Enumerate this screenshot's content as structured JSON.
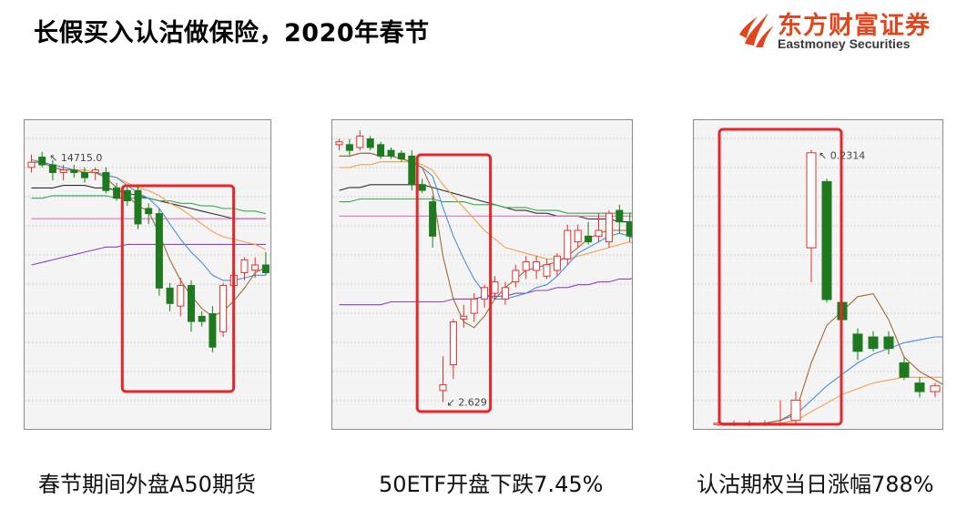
{
  "title": "长假买入认沽做保险，2020年春节",
  "logo": {
    "cn": "东方财富证券",
    "en": "Eastmoney Securities",
    "mark": "flame-logo-icon"
  },
  "colors": {
    "up": "#e0302b",
    "down": "#1f7a1f",
    "highlight": "#e8262a",
    "panel_bg": "#f4f4f4"
  },
  "captions": [
    "春节期间外盘A50期货",
    "50ETF开盘下跌7.45%",
    "认沽期权当日涨幅788%"
  ],
  "chart_data": [
    {
      "type": "candlestick",
      "caption": "春节期间外盘A50期货",
      "annotation_high": "14715.0",
      "candles": [
        {
          "o": 0.88,
          "h": 0.93,
          "l": 0.86,
          "c": 0.9
        },
        {
          "o": 0.92,
          "h": 0.94,
          "l": 0.88,
          "c": 0.89
        },
        {
          "o": 0.89,
          "h": 0.91,
          "l": 0.83,
          "c": 0.86
        },
        {
          "o": 0.86,
          "h": 0.89,
          "l": 0.83,
          "c": 0.87
        },
        {
          "o": 0.87,
          "h": 0.89,
          "l": 0.84,
          "c": 0.86
        },
        {
          "o": 0.86,
          "h": 0.88,
          "l": 0.82,
          "c": 0.84
        },
        {
          "o": 0.86,
          "h": 0.88,
          "l": 0.83,
          "c": 0.87
        },
        {
          "o": 0.86,
          "h": 0.88,
          "l": 0.78,
          "c": 0.79
        },
        {
          "o": 0.8,
          "h": 0.82,
          "l": 0.75,
          "c": 0.76
        },
        {
          "o": 0.79,
          "h": 0.81,
          "l": 0.73,
          "c": 0.75
        },
        {
          "o": 0.79,
          "h": 0.81,
          "l": 0.64,
          "c": 0.66
        },
        {
          "o": 0.72,
          "h": 0.74,
          "l": 0.66,
          "c": 0.7
        },
        {
          "o": 0.7,
          "h": 0.72,
          "l": 0.38,
          "c": 0.41
        },
        {
          "o": 0.41,
          "h": 0.43,
          "l": 0.32,
          "c": 0.35
        },
        {
          "o": 0.34,
          "h": 0.45,
          "l": 0.3,
          "c": 0.42
        },
        {
          "o": 0.42,
          "h": 0.44,
          "l": 0.24,
          "c": 0.28
        },
        {
          "o": 0.3,
          "h": 0.32,
          "l": 0.26,
          "c": 0.28
        },
        {
          "o": 0.31,
          "h": 0.34,
          "l": 0.16,
          "c": 0.18
        },
        {
          "o": 0.24,
          "h": 0.43,
          "l": 0.22,
          "c": 0.42
        },
        {
          "o": 0.42,
          "h": 0.48,
          "l": 0.38,
          "c": 0.46
        },
        {
          "o": 0.47,
          "h": 0.53,
          "l": 0.44,
          "c": 0.52
        },
        {
          "o": 0.48,
          "h": 0.53,
          "l": 0.45,
          "c": 0.5
        },
        {
          "o": 0.5,
          "h": 0.55,
          "l": 0.46,
          "c": 0.47
        }
      ],
      "lines": [
        {
          "color": "#2e2e2e",
          "values": [
            0.8,
            0.8,
            0.8,
            0.81,
            0.81,
            0.81,
            0.8,
            0.8,
            0.79,
            0.78,
            0.77,
            0.76,
            0.75,
            0.74,
            0.73,
            0.72,
            0.71,
            0.7,
            0.69,
            0.68,
            0.68,
            0.68,
            0.68
          ]
        },
        {
          "color": "#3aa84a",
          "values": [
            0.76,
            0.76,
            0.77,
            0.77,
            0.77,
            0.77,
            0.77,
            0.77,
            0.76,
            0.76,
            0.76,
            0.76,
            0.75,
            0.75,
            0.74,
            0.74,
            0.73,
            0.73,
            0.72,
            0.72,
            0.71,
            0.71,
            0.7
          ]
        },
        {
          "color": "#e070c0",
          "values": [
            0.68,
            0.68,
            0.68,
            0.68,
            0.68,
            0.68,
            0.68,
            0.68,
            0.68,
            0.68,
            0.68,
            0.68,
            0.68,
            0.68,
            0.68,
            0.68,
            0.68,
            0.68,
            0.68,
            0.68,
            0.68,
            0.68,
            0.68
          ]
        },
        {
          "color": "#8e3fc0",
          "values": [
            0.5,
            0.51,
            0.52,
            0.53,
            0.54,
            0.55,
            0.56,
            0.57,
            0.57,
            0.58,
            0.58,
            0.58,
            0.58,
            0.58,
            0.58,
            0.58,
            0.58,
            0.58,
            0.58,
            0.58,
            0.58,
            0.58,
            0.58
          ]
        },
        {
          "color": "#f0a050",
          "values": [
            0.9,
            0.9,
            0.89,
            0.88,
            0.87,
            0.87,
            0.86,
            0.85,
            0.84,
            0.82,
            0.8,
            0.79,
            0.77,
            0.74,
            0.72,
            0.69,
            0.66,
            0.63,
            0.61,
            0.6,
            0.59,
            0.58,
            0.56
          ]
        },
        {
          "color": "#4a90d9",
          "values": [
            0.91,
            0.9,
            0.89,
            0.88,
            0.87,
            0.86,
            0.86,
            0.85,
            0.84,
            0.81,
            0.78,
            0.76,
            0.72,
            0.66,
            0.6,
            0.55,
            0.51,
            0.46,
            0.44,
            0.44,
            0.45,
            0.46,
            0.46
          ]
        },
        {
          "color": "#a06a35",
          "values": [
            0.9,
            0.9,
            0.88,
            0.87,
            0.87,
            0.86,
            0.86,
            0.84,
            0.8,
            0.77,
            0.73,
            0.71,
            0.62,
            0.52,
            0.44,
            0.38,
            0.33,
            0.3,
            0.32,
            0.36,
            0.41,
            0.47,
            0.49
          ]
        }
      ],
      "highlight": {
        "start": 9,
        "end": 18
      }
    },
    {
      "type": "candlestick",
      "caption": "50ETF开盘下跌7.45%",
      "annotation_low": "2.629",
      "candles": [
        {
          "o": 0.94,
          "h": 0.96,
          "l": 0.92,
          "c": 0.95
        },
        {
          "o": 0.94,
          "h": 0.96,
          "l": 0.9,
          "c": 0.92
        },
        {
          "o": 0.93,
          "h": 0.99,
          "l": 0.92,
          "c": 0.97
        },
        {
          "o": 0.96,
          "h": 0.97,
          "l": 0.92,
          "c": 0.93
        },
        {
          "o": 0.94,
          "h": 0.95,
          "l": 0.89,
          "c": 0.9
        },
        {
          "o": 0.92,
          "h": 0.93,
          "l": 0.89,
          "c": 0.9
        },
        {
          "o": 0.91,
          "h": 0.92,
          "l": 0.88,
          "c": 0.89
        },
        {
          "o": 0.9,
          "h": 0.92,
          "l": 0.78,
          "c": 0.8
        },
        {
          "o": 0.8,
          "h": 0.82,
          "l": 0.77,
          "c": 0.78
        },
        {
          "o": 0.74,
          "h": 0.76,
          "l": 0.58,
          "c": 0.62
        },
        {
          "o": 0.08,
          "h": 0.2,
          "l": 0.04,
          "c": 0.1
        },
        {
          "o": 0.17,
          "h": 0.33,
          "l": 0.12,
          "c": 0.32
        },
        {
          "o": 0.33,
          "h": 0.38,
          "l": 0.3,
          "c": 0.34
        },
        {
          "o": 0.35,
          "h": 0.42,
          "l": 0.32,
          "c": 0.4
        },
        {
          "o": 0.4,
          "h": 0.45,
          "l": 0.37,
          "c": 0.44
        },
        {
          "o": 0.42,
          "h": 0.48,
          "l": 0.4,
          "c": 0.46
        },
        {
          "o": 0.4,
          "h": 0.46,
          "l": 0.38,
          "c": 0.44
        },
        {
          "o": 0.46,
          "h": 0.52,
          "l": 0.44,
          "c": 0.5
        },
        {
          "o": 0.5,
          "h": 0.55,
          "l": 0.47,
          "c": 0.53
        },
        {
          "o": 0.5,
          "h": 0.55,
          "l": 0.47,
          "c": 0.53
        },
        {
          "o": 0.48,
          "h": 0.54,
          "l": 0.47,
          "c": 0.52
        },
        {
          "o": 0.5,
          "h": 0.56,
          "l": 0.48,
          "c": 0.55
        },
        {
          "o": 0.54,
          "h": 0.66,
          "l": 0.52,
          "c": 0.64
        },
        {
          "o": 0.6,
          "h": 0.66,
          "l": 0.58,
          "c": 0.64
        },
        {
          "o": 0.62,
          "h": 0.67,
          "l": 0.59,
          "c": 0.6
        },
        {
          "o": 0.62,
          "h": 0.7,
          "l": 0.6,
          "c": 0.64
        },
        {
          "o": 0.6,
          "h": 0.71,
          "l": 0.58,
          "c": 0.7
        },
        {
          "o": 0.71,
          "h": 0.73,
          "l": 0.63,
          "c": 0.67
        },
        {
          "o": 0.67,
          "h": 0.7,
          "l": 0.6,
          "c": 0.62
        },
        {
          "o": 0.56,
          "h": 0.58,
          "l": 0.51,
          "c": 0.57
        }
      ],
      "lines": [
        {
          "color": "#2e2e2e",
          "values": [
            0.78,
            0.79,
            0.79,
            0.8,
            0.8,
            0.8,
            0.8,
            0.8,
            0.8,
            0.79,
            0.78,
            0.77,
            0.76,
            0.75,
            0.74,
            0.73,
            0.72,
            0.71,
            0.71,
            0.7,
            0.7,
            0.69,
            0.69,
            0.69,
            0.68,
            0.68,
            0.68,
            0.67,
            0.67,
            0.67
          ]
        },
        {
          "color": "#3aa84a",
          "values": [
            0.74,
            0.74,
            0.75,
            0.75,
            0.75,
            0.75,
            0.75,
            0.75,
            0.75,
            0.75,
            0.74,
            0.74,
            0.74,
            0.73,
            0.73,
            0.73,
            0.72,
            0.72,
            0.72,
            0.71,
            0.71,
            0.71,
            0.7,
            0.7,
            0.7,
            0.7,
            0.7,
            0.7,
            0.7,
            0.7
          ]
        },
        {
          "color": "#e070c0",
          "values": [
            0.69,
            0.69,
            0.69,
            0.69,
            0.69,
            0.69,
            0.69,
            0.69,
            0.69,
            0.69,
            0.69,
            0.69,
            0.69,
            0.69,
            0.69,
            0.69,
            0.69,
            0.69,
            0.69,
            0.69,
            0.69,
            0.69,
            0.69,
            0.69,
            0.69,
            0.69,
            0.69,
            0.69,
            0.69,
            0.69
          ]
        },
        {
          "color": "#8e3fc0",
          "values": [
            0.38,
            0.38,
            0.38,
            0.38,
            0.38,
            0.39,
            0.39,
            0.39,
            0.39,
            0.39,
            0.39,
            0.4,
            0.4,
            0.4,
            0.41,
            0.41,
            0.41,
            0.42,
            0.42,
            0.43,
            0.43,
            0.44,
            0.44,
            0.45,
            0.45,
            0.46,
            0.46,
            0.47,
            0.47,
            0.48
          ]
        },
        {
          "color": "#f0a050",
          "values": [
            0.86,
            0.86,
            0.87,
            0.87,
            0.88,
            0.88,
            0.88,
            0.88,
            0.87,
            0.85,
            0.8,
            0.76,
            0.72,
            0.68,
            0.64,
            0.61,
            0.58,
            0.57,
            0.56,
            0.55,
            0.54,
            0.54,
            0.54,
            0.55,
            0.56,
            0.57,
            0.58,
            0.59,
            0.6,
            0.58
          ]
        },
        {
          "color": "#4a90d9",
          "values": [
            0.9,
            0.9,
            0.91,
            0.91,
            0.9,
            0.9,
            0.89,
            0.88,
            0.86,
            0.83,
            0.72,
            0.62,
            0.54,
            0.47,
            0.42,
            0.4,
            0.4,
            0.41,
            0.42,
            0.44,
            0.45,
            0.48,
            0.52,
            0.56,
            0.58,
            0.6,
            0.62,
            0.63,
            0.62,
            0.59
          ]
        },
        {
          "color": "#a06a35",
          "values": [
            0.9,
            0.9,
            0.91,
            0.91,
            0.9,
            0.9,
            0.89,
            0.88,
            0.86,
            0.78,
            0.55,
            0.4,
            0.32,
            0.3,
            0.34,
            0.4,
            0.44,
            0.47,
            0.5,
            0.51,
            0.52,
            0.53,
            0.55,
            0.58,
            0.61,
            0.63,
            0.64,
            0.64,
            0.64,
            0.62
          ]
        }
      ],
      "highlight": {
        "start": 8,
        "end": 14
      }
    },
    {
      "type": "candlestick",
      "caption": "认沽期权当日涨幅788%",
      "annotation_high": "0.2314",
      "candles": [
        {
          "o": 0.01,
          "h": 0.02,
          "l": 0.0,
          "c": 0.01
        },
        {
          "o": 0.01,
          "h": 0.02,
          "l": 0.0,
          "c": 0.01
        },
        {
          "o": 0.01,
          "h": 0.02,
          "l": 0.0,
          "c": 0.01
        },
        {
          "o": 0.01,
          "h": 0.02,
          "l": 0.0,
          "c": 0.01
        },
        {
          "o": 0.01,
          "h": 0.09,
          "l": 0.0,
          "c": 0.01
        },
        {
          "o": 0.02,
          "h": 0.12,
          "l": 0.01,
          "c": 0.09
        },
        {
          "o": 0.62,
          "h": 0.96,
          "l": 0.5,
          "c": 0.95
        },
        {
          "o": 0.85,
          "h": 0.86,
          "l": 0.43,
          "c": 0.44
        },
        {
          "o": 0.43,
          "h": 0.48,
          "l": 0.35,
          "c": 0.37
        },
        {
          "o": 0.32,
          "h": 0.34,
          "l": 0.23,
          "c": 0.26
        },
        {
          "o": 0.31,
          "h": 0.33,
          "l": 0.26,
          "c": 0.27
        },
        {
          "o": 0.31,
          "h": 0.33,
          "l": 0.25,
          "c": 0.27
        },
        {
          "o": 0.22,
          "h": 0.24,
          "l": 0.16,
          "c": 0.17
        },
        {
          "o": 0.15,
          "h": 0.17,
          "l": 0.1,
          "c": 0.12
        },
        {
          "o": 0.12,
          "h": 0.15,
          "l": 0.1,
          "c": 0.14
        },
        {
          "o": 0.14,
          "h": 0.15,
          "l": 0.08,
          "c": 0.09
        }
      ],
      "lines": [
        {
          "color": "#f0a050",
          "values": [
            0.01,
            0.01,
            0.01,
            0.01,
            0.01,
            0.02,
            0.05,
            0.08,
            0.11,
            0.13,
            0.15,
            0.16,
            0.17,
            0.17,
            0.17,
            0.17
          ]
        },
        {
          "color": "#4a90d9",
          "values": [
            0.01,
            0.01,
            0.01,
            0.01,
            0.02,
            0.04,
            0.09,
            0.14,
            0.18,
            0.22,
            0.25,
            0.27,
            0.29,
            0.3,
            0.31,
            0.31
          ]
        },
        {
          "color": "#a06a35",
          "values": [
            0.01,
            0.01,
            0.01,
            0.01,
            0.02,
            0.05,
            0.22,
            0.35,
            0.4,
            0.45,
            0.46,
            0.37,
            0.24,
            0.19,
            0.16,
            0.13
          ]
        }
      ],
      "highlight": {
        "start": 0,
        "end": 6
      }
    }
  ]
}
